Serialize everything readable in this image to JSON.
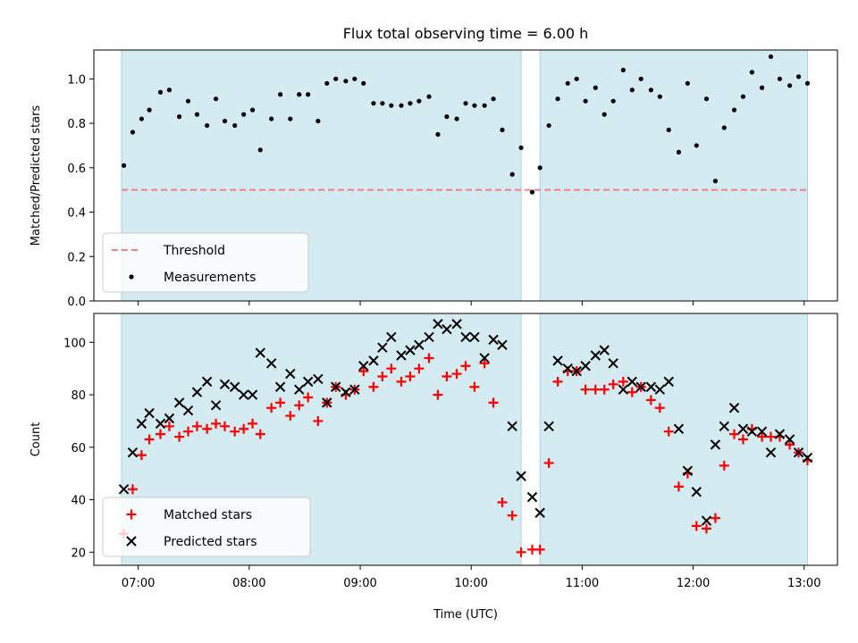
{
  "figure": {
    "title": "Flux total observing time = 6.00 h",
    "xlabel": "Time (UTC)",
    "x_ticks": [
      "07:00",
      "08:00",
      "09:00",
      "10:00",
      "11:00",
      "12:00",
      "13:00"
    ],
    "x_tick_hours": [
      7,
      8,
      9,
      10,
      11,
      12,
      13
    ],
    "x_range_hours": [
      6.6,
      13.3
    ]
  },
  "colors": {
    "shade": "#d4ebf1",
    "shade_edge": "#a8d3de",
    "threshold": "#f08080",
    "measurements": "#000000",
    "matched": "#ff0000",
    "predicted": "#000000"
  },
  "chart_data": [
    {
      "type": "scatter",
      "ylabel": "Matched/Predicted stars",
      "ylim": [
        0,
        1.13
      ],
      "y_ticks": [
        0.0,
        0.2,
        0.4,
        0.6,
        0.8,
        1.0
      ],
      "y_tick_labels": [
        "0.0",
        "0.2",
        "0.4",
        "0.6",
        "0.8",
        "1.0"
      ],
      "shaded_intervals_hours": [
        [
          6.85,
          10.45
        ],
        [
          10.62,
          13.03
        ]
      ],
      "threshold": {
        "name": "Threshold",
        "value": 0.5,
        "x_range_hours": [
          6.85,
          13.03
        ]
      },
      "legend": {
        "placement": "lower-left",
        "entries": [
          "Threshold",
          "Measurements"
        ]
      },
      "series": [
        {
          "name": "Measurements",
          "x_hours": [
            6.87,
            6.95,
            7.03,
            7.1,
            7.2,
            7.28,
            7.37,
            7.45,
            7.53,
            7.62,
            7.7,
            7.78,
            7.87,
            7.95,
            8.03,
            8.1,
            8.2,
            8.28,
            8.37,
            8.45,
            8.53,
            8.62,
            8.7,
            8.78,
            8.87,
            8.95,
            9.03,
            9.12,
            9.2,
            9.28,
            9.37,
            9.45,
            9.53,
            9.62,
            9.7,
            9.78,
            9.87,
            9.95,
            10.03,
            10.12,
            10.2,
            10.28,
            10.37,
            10.45,
            10.55,
            10.62,
            10.7,
            10.78,
            10.87,
            10.95,
            11.03,
            11.12,
            11.2,
            11.28,
            11.37,
            11.45,
            11.53,
            11.62,
            11.7,
            11.78,
            11.87,
            11.95,
            12.03,
            12.12,
            12.2,
            12.28,
            12.37,
            12.45,
            12.53,
            12.62,
            12.7,
            12.78,
            12.87,
            12.95,
            13.03
          ],
          "values": [
            0.61,
            0.76,
            0.82,
            0.86,
            0.94,
            0.95,
            0.83,
            0.9,
            0.84,
            0.79,
            0.91,
            0.81,
            0.79,
            0.84,
            0.86,
            0.68,
            0.82,
            0.93,
            0.82,
            0.93,
            0.93,
            0.81,
            0.98,
            1.0,
            0.99,
            1.0,
            0.98,
            0.89,
            0.89,
            0.88,
            0.88,
            0.89,
            0.9,
            0.92,
            0.75,
            0.83,
            0.82,
            0.89,
            0.88,
            0.88,
            0.91,
            0.77,
            0.57,
            0.69,
            0.49,
            0.6,
            0.79,
            0.91,
            0.98,
            1.0,
            0.9,
            0.96,
            0.84,
            0.9,
            1.04,
            0.95,
            1.0,
            0.95,
            0.92,
            0.77,
            0.67,
            0.98,
            0.7,
            0.91,
            0.54,
            0.78,
            0.86,
            0.92,
            1.03,
            0.96,
            1.1,
            1.0,
            0.97,
            1.01,
            0.98
          ]
        }
      ]
    },
    {
      "type": "scatter",
      "ylabel": "Count",
      "ylim": [
        15,
        111
      ],
      "y_ticks": [
        20,
        40,
        60,
        80,
        100
      ],
      "y_tick_labels": [
        "20",
        "40",
        "60",
        "80",
        "100"
      ],
      "shaded_intervals_hours": [
        [
          6.85,
          10.45
        ],
        [
          10.62,
          13.03
        ]
      ],
      "legend": {
        "placement": "lower-left",
        "entries": [
          "Matched stars",
          "Predicted stars"
        ]
      },
      "x_hours": [
        6.87,
        6.95,
        7.03,
        7.1,
        7.2,
        7.28,
        7.37,
        7.45,
        7.53,
        7.62,
        7.7,
        7.78,
        7.87,
        7.95,
        8.03,
        8.1,
        8.2,
        8.28,
        8.37,
        8.45,
        8.53,
        8.62,
        8.7,
        8.78,
        8.87,
        8.95,
        9.03,
        9.12,
        9.2,
        9.28,
        9.37,
        9.45,
        9.53,
        9.62,
        9.7,
        9.78,
        9.87,
        9.95,
        10.03,
        10.12,
        10.2,
        10.28,
        10.37,
        10.45,
        10.55,
        10.62,
        10.7,
        10.78,
        10.87,
        10.95,
        11.03,
        11.12,
        11.2,
        11.28,
        11.37,
        11.45,
        11.53,
        11.62,
        11.7,
        11.78,
        11.87,
        11.95,
        12.03,
        12.12,
        12.2,
        12.28,
        12.37,
        12.45,
        12.53,
        12.62,
        12.7,
        12.78,
        12.87,
        12.95,
        13.03
      ],
      "series": [
        {
          "name": "Matched stars",
          "values": [
            27,
            44,
            57,
            63,
            65,
            68,
            64,
            66,
            68,
            67,
            69,
            68,
            66,
            67,
            69,
            65,
            75,
            77,
            72,
            76,
            79,
            70,
            77,
            83,
            80,
            82,
            89,
            83,
            87,
            90,
            85,
            87,
            90,
            94,
            80,
            87,
            88,
            91,
            83,
            92,
            77,
            39,
            34,
            20,
            21,
            21,
            54,
            85,
            89,
            89,
            82,
            82,
            82,
            84,
            85,
            81,
            83,
            78,
            75,
            66,
            45,
            50,
            30,
            29,
            33,
            53,
            65,
            63,
            67,
            64,
            64,
            64,
            61,
            58,
            55
          ]
        },
        {
          "name": "Predicted stars",
          "values": [
            44,
            58,
            69,
            73,
            69,
            71,
            77,
            74,
            81,
            85,
            76,
            84,
            83,
            80,
            80,
            96,
            92,
            83,
            88,
            82,
            85,
            86,
            77,
            83,
            81,
            82,
            91,
            93,
            98,
            102,
            95,
            97,
            99,
            102,
            107,
            105,
            107,
            102,
            102,
            94,
            101,
            99,
            68,
            49,
            41,
            35,
            68,
            93,
            90,
            89,
            91,
            95,
            97,
            92,
            82,
            85,
            83,
            83,
            82,
            85,
            67,
            51,
            43,
            32,
            61,
            68,
            75,
            67,
            66,
            66,
            58,
            65,
            63,
            58,
            56
          ]
        }
      ]
    }
  ]
}
